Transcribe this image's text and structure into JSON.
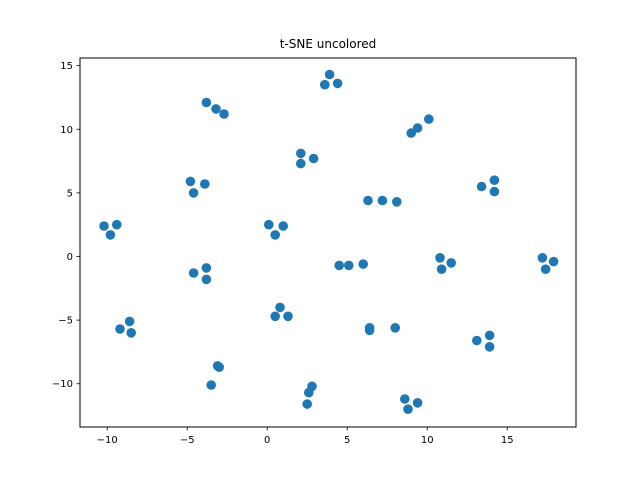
{
  "chart_data": {
    "type": "scatter",
    "title": "t-SNE uncolored",
    "xlabel": "",
    "ylabel": "",
    "xlim": [
      -11.7,
      19.3
    ],
    "ylim": [
      -13.4,
      15.6
    ],
    "xticks": [
      -10,
      -5,
      0,
      5,
      10,
      15
    ],
    "yticks": [
      -10,
      -5,
      0,
      5,
      10,
      15
    ],
    "xtick_labels": [
      "−10",
      "−5",
      "0",
      "5",
      "10",
      "15"
    ],
    "ytick_labels": [
      "−10",
      "−5",
      "0",
      "5",
      "10",
      "15"
    ],
    "grid": false,
    "marker_color": "#1f77b4",
    "points": [
      {
        "x": -10.2,
        "y": 2.4
      },
      {
        "x": -9.8,
        "y": 1.7
      },
      {
        "x": -9.4,
        "y": 2.5
      },
      {
        "x": -4.8,
        "y": 5.9
      },
      {
        "x": -4.6,
        "y": 5.0
      },
      {
        "x": -3.9,
        "y": 5.7
      },
      {
        "x": -3.8,
        "y": 12.1
      },
      {
        "x": -3.2,
        "y": 11.6
      },
      {
        "x": -2.7,
        "y": 11.2
      },
      {
        "x": -4.6,
        "y": -1.3
      },
      {
        "x": -3.8,
        "y": -0.9
      },
      {
        "x": -3.8,
        "y": -1.8
      },
      {
        "x": -9.2,
        "y": -5.7
      },
      {
        "x": -8.6,
        "y": -5.1
      },
      {
        "x": -8.5,
        "y": -6.0
      },
      {
        "x": -3.1,
        "y": -8.6
      },
      {
        "x": -3.0,
        "y": -8.7
      },
      {
        "x": -3.5,
        "y": -10.1
      },
      {
        "x": 0.1,
        "y": 2.5
      },
      {
        "x": 0.5,
        "y": 1.7
      },
      {
        "x": 1.0,
        "y": 2.4
      },
      {
        "x": 2.1,
        "y": 8.1
      },
      {
        "x": 2.1,
        "y": 7.3
      },
      {
        "x": 2.9,
        "y": 7.7
      },
      {
        "x": 3.6,
        "y": 13.5
      },
      {
        "x": 3.9,
        "y": 14.3
      },
      {
        "x": 4.4,
        "y": 13.6
      },
      {
        "x": 0.5,
        "y": -4.7
      },
      {
        "x": 0.8,
        "y": -4.0
      },
      {
        "x": 1.3,
        "y": -4.7
      },
      {
        "x": 2.5,
        "y": -11.6
      },
      {
        "x": 2.6,
        "y": -10.7
      },
      {
        "x": 2.8,
        "y": -10.2
      },
      {
        "x": 4.5,
        "y": -0.7
      },
      {
        "x": 5.1,
        "y": -0.7
      },
      {
        "x": 6.0,
        "y": -0.6
      },
      {
        "x": 6.3,
        "y": 4.4
      },
      {
        "x": 7.2,
        "y": 4.4
      },
      {
        "x": 8.1,
        "y": 4.3
      },
      {
        "x": 6.4,
        "y": -5.6
      },
      {
        "x": 6.4,
        "y": -5.8
      },
      {
        "x": 8.0,
        "y": -5.6
      },
      {
        "x": 9.0,
        "y": 9.7
      },
      {
        "x": 9.4,
        "y": 10.1
      },
      {
        "x": 10.1,
        "y": 10.8
      },
      {
        "x": 8.6,
        "y": -11.2
      },
      {
        "x": 8.8,
        "y": -12.0
      },
      {
        "x": 9.4,
        "y": -11.5
      },
      {
        "x": 10.8,
        "y": -0.1
      },
      {
        "x": 10.9,
        "y": -1.0
      },
      {
        "x": 11.5,
        "y": -0.5
      },
      {
        "x": 13.1,
        "y": -6.6
      },
      {
        "x": 13.9,
        "y": -6.2
      },
      {
        "x": 13.9,
        "y": -7.1
      },
      {
        "x": 13.4,
        "y": 5.5
      },
      {
        "x": 14.2,
        "y": 5.1
      },
      {
        "x": 14.2,
        "y": 6.0
      },
      {
        "x": 17.2,
        "y": -0.1
      },
      {
        "x": 17.4,
        "y": -1.0
      },
      {
        "x": 17.9,
        "y": -0.4
      }
    ]
  }
}
